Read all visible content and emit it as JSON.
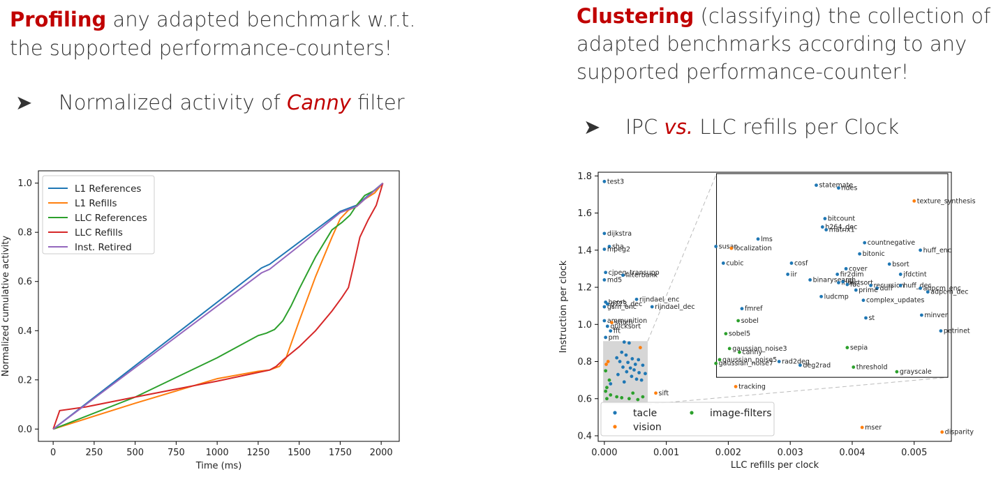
{
  "left": {
    "heading_bold": "Profiling",
    "heading_line1_rest": " any adapted benchmark w.r.t.",
    "heading_line2": "the supported performance-counters!",
    "bullet_glyph": "➤",
    "bullet_pre": "Normalized activity of ",
    "bullet_em": "Canny",
    "bullet_post": " filter"
  },
  "right": {
    "heading_bold": "Clustering",
    "heading_line1_rest": " (classifying) the collection of",
    "heading_line2": "adapted benchmarks according to any",
    "heading_line3": "supported performance-counter!",
    "bullet_glyph": "➤",
    "bullet_pre": "IPC ",
    "bullet_em": "vs.",
    "bullet_post": " LLC refills per Clock"
  },
  "chart_data": [
    {
      "type": "line",
      "title": "",
      "xlabel": "Time (ms)",
      "ylabel": "Normalized cumulative activity",
      "xlim": [
        -90,
        2110
      ],
      "ylim": [
        -0.05,
        1.05
      ],
      "xticks": [
        0,
        250,
        500,
        750,
        1000,
        1250,
        1500,
        1750,
        2000
      ],
      "yticks": [
        0.0,
        0.2,
        0.4,
        0.6,
        0.8,
        1.0
      ],
      "legend": "top-left",
      "grid": false,
      "series": [
        {
          "name": "L1 References",
          "color": "#1f77b4",
          "x": [
            0,
            1270,
            1320,
            1500,
            1750,
            1850,
            2010
          ],
          "y": [
            0.0,
            0.655,
            0.67,
            0.76,
            0.885,
            0.91,
            1.0
          ]
        },
        {
          "name": "L1 Refills",
          "color": "#ff7f0e",
          "x": [
            0,
            500,
            1000,
            1250,
            1320,
            1380,
            1420,
            1500,
            1600,
            1700,
            1750,
            1800,
            1850,
            1900,
            1960,
            2010
          ],
          "y": [
            0.0,
            0.105,
            0.205,
            0.235,
            0.24,
            0.255,
            0.29,
            0.44,
            0.62,
            0.78,
            0.855,
            0.89,
            0.905,
            0.935,
            0.96,
            1.0
          ]
        },
        {
          "name": "LLC References",
          "color": "#2ca02c",
          "x": [
            0,
            500,
            1000,
            1250,
            1300,
            1350,
            1400,
            1450,
            1500,
            1600,
            1700,
            1760,
            1810,
            1850,
            1900,
            1960,
            2010
          ],
          "y": [
            0.0,
            0.13,
            0.29,
            0.38,
            0.39,
            0.405,
            0.44,
            0.5,
            0.57,
            0.7,
            0.81,
            0.84,
            0.87,
            0.91,
            0.95,
            0.97,
            1.0
          ]
        },
        {
          "name": "LLC Refills",
          "color": "#d62728",
          "x": [
            0,
            40,
            200,
            500,
            1000,
            1250,
            1320,
            1360,
            1400,
            1500,
            1600,
            1700,
            1760,
            1800,
            1830,
            1870,
            1920,
            1970,
            2010
          ],
          "y": [
            0.0,
            0.075,
            0.09,
            0.13,
            0.195,
            0.23,
            0.24,
            0.255,
            0.28,
            0.335,
            0.4,
            0.48,
            0.535,
            0.575,
            0.66,
            0.78,
            0.85,
            0.91,
            1.0
          ]
        },
        {
          "name": "Inst. Retired",
          "color": "#9467bd",
          "x": [
            0,
            1270,
            1320,
            1500,
            1750,
            1850,
            2010
          ],
          "y": [
            0.0,
            0.635,
            0.65,
            0.745,
            0.88,
            0.905,
            1.0
          ]
        }
      ]
    },
    {
      "type": "scatter",
      "title": "",
      "xlabel": "LLC refills per clock",
      "ylabel": "Instruction per clock",
      "xlim": [
        -0.0001,
        0.0056
      ],
      "ylim": [
        0.37,
        1.82
      ],
      "xticks": [
        0.0,
        0.001,
        0.002,
        0.003,
        0.004,
        0.005
      ],
      "xtick_labels": [
        "0.000",
        "0.001",
        "0.002",
        "0.003",
        "0.004",
        "0.005"
      ],
      "yticks": [
        0.4,
        0.6,
        0.8,
        1.0,
        1.2,
        1.4,
        1.6,
        1.8
      ],
      "ytick_labels": [
        "0.4",
        "0.6",
        "0.8",
        "1.0",
        "1.2",
        "1.4",
        "1.6",
        "1.8"
      ],
      "legend": "bottom-left",
      "legend_entries": [
        {
          "name": "tacle",
          "color": "#1f77b4"
        },
        {
          "name": "vision",
          "color": "#ff7f0e"
        },
        {
          "name": "image-filters",
          "color": "#2ca02c"
        }
      ],
      "highlight_region": {
        "x": [
          -2e-05,
          0.0007
        ],
        "y": [
          0.57,
          0.91
        ]
      },
      "points": [
        {
          "label": "test3",
          "x": 0.0,
          "y": 1.77,
          "g": "tacle"
        },
        {
          "label": "dijkstra",
          "x": 0.0,
          "y": 1.49,
          "g": "tacle"
        },
        {
          "label": "sha",
          "x": 8e-05,
          "y": 1.42,
          "g": "tacle"
        },
        {
          "label": "mpeg2",
          "x": 0.0,
          "y": 1.405,
          "g": "tacle"
        },
        {
          "label": "cjpeg_transupp",
          "x": 2e-05,
          "y": 1.28,
          "g": "tacle"
        },
        {
          "label": "filterbank",
          "x": 0.0003,
          "y": 1.265,
          "g": "tacle"
        },
        {
          "label": "md5",
          "x": 0.0,
          "y": 1.24,
          "g": "tacle"
        },
        {
          "label": "rijndael_enc",
          "x": 0.00052,
          "y": 1.135,
          "g": "tacle"
        },
        {
          "label": "rijndael_dec",
          "x": 0.00077,
          "y": 1.095,
          "g": "tacle"
        },
        {
          "label": "bsort",
          "x": 2e-05,
          "y": 1.12,
          "g": "tacle"
        },
        {
          "label": "g723_dec",
          "x": 5e-05,
          "y": 1.11,
          "g": "tacle"
        },
        {
          "label": "gsm_enc",
          "x": 0.0,
          "y": 1.095,
          "g": "tacle"
        },
        {
          "label": "ammunition",
          "x": 0.0,
          "y": 1.02,
          "g": "tacle"
        },
        {
          "label": "stitch",
          "x": 0.00012,
          "y": 1.01,
          "g": "vision"
        },
        {
          "label": "quicksort",
          "x": 5e-05,
          "y": 0.99,
          "g": "tacle"
        },
        {
          "label": "fft",
          "x": 0.0001,
          "y": 0.965,
          "g": "tacle"
        },
        {
          "label": "pm",
          "x": 2e-05,
          "y": 0.93,
          "g": "tacle"
        },
        {
          "label": "sift",
          "x": 0.00083,
          "y": 0.63,
          "g": "vision"
        },
        {
          "label": "statemate",
          "x": 0.00342,
          "y": 1.75,
          "g": "tacle"
        },
        {
          "label": "ndes",
          "x": 0.00378,
          "y": 1.735,
          "g": "tacle"
        },
        {
          "label": "texture_synthesis",
          "x": 0.005,
          "y": 1.665,
          "g": "vision"
        },
        {
          "label": "bitcount",
          "x": 0.00356,
          "y": 1.57,
          "g": "tacle"
        },
        {
          "label": "h264_dec",
          "x": 0.00352,
          "y": 1.525,
          "g": "tacle"
        },
        {
          "label": "matrix1",
          "x": 0.00358,
          "y": 1.51,
          "g": "tacle"
        },
        {
          "label": "lms",
          "x": 0.00248,
          "y": 1.46,
          "g": "tacle"
        },
        {
          "label": "countnegative",
          "x": 0.0042,
          "y": 1.44,
          "g": "tacle"
        },
        {
          "label": "susan",
          "x": 0.0018,
          "y": 1.42,
          "g": "tacle"
        },
        {
          "label": "localization",
          "x": 0.00205,
          "y": 1.41,
          "g": "vision"
        },
        {
          "label": "huff_enc",
          "x": 0.0051,
          "y": 1.4,
          "g": "tacle"
        },
        {
          "label": "bitonic",
          "x": 0.00412,
          "y": 1.38,
          "g": "tacle"
        },
        {
          "label": "cubic",
          "x": 0.00192,
          "y": 1.33,
          "g": "tacle"
        },
        {
          "label": "cosf",
          "x": 0.00302,
          "y": 1.33,
          "g": "tacle"
        },
        {
          "label": "bsort",
          "x": 0.0046,
          "y": 1.325,
          "g": "tacle"
        },
        {
          "label": "cover",
          "x": 0.0039,
          "y": 1.3,
          "g": "tacle"
        },
        {
          "label": "fir2dim",
          "x": 0.00376,
          "y": 1.27,
          "g": "tacle"
        },
        {
          "label": "iir",
          "x": 0.00296,
          "y": 1.27,
          "g": "tacle"
        },
        {
          "label": "jfdctint",
          "x": 0.00478,
          "y": 1.27,
          "g": "tacle"
        },
        {
          "label": "binarysearch",
          "x": 0.00332,
          "y": 1.24,
          "g": "tacle"
        },
        {
          "label": "insertsort",
          "x": 0.00378,
          "y": 1.225,
          "g": "tacle"
        },
        {
          "label": "lift",
          "x": 0.00385,
          "y": 1.23,
          "g": "tacle"
        },
        {
          "label": "fac",
          "x": 0.00392,
          "y": 1.215,
          "g": "tacle"
        },
        {
          "label": "recursion",
          "x": 0.0043,
          "y": 1.21,
          "g": "tacle"
        },
        {
          "label": "huff_dec",
          "x": 0.00478,
          "y": 1.21,
          "g": "tacle"
        },
        {
          "label": "duff",
          "x": 0.0044,
          "y": 1.195,
          "g": "tacle"
        },
        {
          "label": "adpcm_enc",
          "x": 0.0051,
          "y": 1.195,
          "g": "tacle"
        },
        {
          "label": "prime",
          "x": 0.00406,
          "y": 1.185,
          "g": "tacle"
        },
        {
          "label": "adpcm_dec",
          "x": 0.00522,
          "y": 1.175,
          "g": "tacle"
        },
        {
          "label": "ludcmp",
          "x": 0.0035,
          "y": 1.15,
          "g": "tacle"
        },
        {
          "label": "complex_updates",
          "x": 0.00418,
          "y": 1.13,
          "g": "tacle"
        },
        {
          "label": "fmref",
          "x": 0.00222,
          "y": 1.085,
          "g": "tacle"
        },
        {
          "label": "minver",
          "x": 0.00512,
          "y": 1.05,
          "g": "tacle"
        },
        {
          "label": "st",
          "x": 0.00422,
          "y": 1.035,
          "g": "tacle"
        },
        {
          "label": "sobel",
          "x": 0.00216,
          "y": 1.02,
          "g": "image-filters"
        },
        {
          "label": "petrinet",
          "x": 0.00543,
          "y": 0.965,
          "g": "tacle"
        },
        {
          "label": "sobel5",
          "x": 0.00196,
          "y": 0.95,
          "g": "image-filters"
        },
        {
          "label": "gaussian_noise3",
          "x": 0.00202,
          "y": 0.87,
          "g": "image-filters"
        },
        {
          "label": "sepia",
          "x": 0.00392,
          "y": 0.875,
          "g": "image-filters"
        },
        {
          "label": "canny",
          "x": 0.00218,
          "y": 0.85,
          "g": "image-filters"
        },
        {
          "label": "gaussian_noise5",
          "x": 0.00186,
          "y": 0.81,
          "g": "image-filters"
        },
        {
          "label": "rad2deg",
          "x": 0.00282,
          "y": 0.8,
          "g": "tacle"
        },
        {
          "label": "gaussian_noise7",
          "x": 0.0018,
          "y": 0.79,
          "g": "image-filters"
        },
        {
          "label": "deg2rad",
          "x": 0.00316,
          "y": 0.78,
          "g": "tacle"
        },
        {
          "label": "threshold",
          "x": 0.00402,
          "y": 0.77,
          "g": "image-filters"
        },
        {
          "label": "grayscale",
          "x": 0.00472,
          "y": 0.745,
          "g": "image-filters"
        },
        {
          "label": "tracking",
          "x": 0.00212,
          "y": 0.665,
          "g": "vision"
        },
        {
          "label": "mser",
          "x": 0.00416,
          "y": 0.445,
          "g": "vision"
        },
        {
          "label": "disparity",
          "x": 0.00545,
          "y": 0.42,
          "g": "vision"
        }
      ],
      "unlabeled_points": [
        {
          "x": 0.00032,
          "y": 0.905,
          "g": "tacle"
        },
        {
          "x": 0.0004,
          "y": 0.9,
          "g": "tacle"
        },
        {
          "x": 0.00058,
          "y": 0.875,
          "g": "vision"
        },
        {
          "x": 0.00028,
          "y": 0.85,
          "g": "tacle"
        },
        {
          "x": 0.00035,
          "y": 0.835,
          "g": "tacle"
        },
        {
          "x": 0.0002,
          "y": 0.82,
          "g": "tacle"
        },
        {
          "x": 0.00045,
          "y": 0.815,
          "g": "tacle"
        },
        {
          "x": 0.00055,
          "y": 0.81,
          "g": "tacle"
        },
        {
          "x": 0.00025,
          "y": 0.8,
          "g": "tacle"
        },
        {
          "x": 0.00038,
          "y": 0.795,
          "g": "tacle"
        },
        {
          "x": 0.0005,
          "y": 0.785,
          "g": "tacle"
        },
        {
          "x": 0.00062,
          "y": 0.78,
          "g": "tacle"
        },
        {
          "x": 0.0003,
          "y": 0.77,
          "g": "tacle"
        },
        {
          "x": 0.00042,
          "y": 0.765,
          "g": "tacle"
        },
        {
          "x": 0.00048,
          "y": 0.755,
          "g": "tacle"
        },
        {
          "x": 0.00036,
          "y": 0.745,
          "g": "tacle"
        },
        {
          "x": 0.00056,
          "y": 0.74,
          "g": "tacle"
        },
        {
          "x": 0.00066,
          "y": 0.735,
          "g": "tacle"
        },
        {
          "x": 0.00022,
          "y": 0.73,
          "g": "tacle"
        },
        {
          "x": 0.00044,
          "y": 0.72,
          "g": "tacle"
        },
        {
          "x": 0.00052,
          "y": 0.705,
          "g": "tacle"
        },
        {
          "x": 0.0006,
          "y": 0.7,
          "g": "tacle"
        },
        {
          "x": 0.00032,
          "y": 0.69,
          "g": "tacle"
        },
        {
          "x": 0.0001,
          "y": 0.68,
          "g": "tacle"
        },
        {
          "x": 6e-05,
          "y": 0.8,
          "g": "vision"
        },
        {
          "x": 3e-05,
          "y": 0.785,
          "g": "vision"
        },
        {
          "x": 2e-05,
          "y": 0.75,
          "g": "image-filters"
        },
        {
          "x": 8e-05,
          "y": 0.7,
          "g": "image-filters"
        },
        {
          "x": 4e-05,
          "y": 0.66,
          "g": "image-filters"
        },
        {
          "x": 2e-05,
          "y": 0.64,
          "g": "image-filters"
        },
        {
          "x": 0.0001,
          "y": 0.62,
          "g": "image-filters"
        },
        {
          "x": 0.0002,
          "y": 0.61,
          "g": "image-filters"
        },
        {
          "x": 0.00028,
          "y": 0.605,
          "g": "image-filters"
        },
        {
          "x": 0.0004,
          "y": 0.6,
          "g": "image-filters"
        },
        {
          "x": 0.00054,
          "y": 0.595,
          "g": "image-filters"
        },
        {
          "x": 0.00046,
          "y": 0.63,
          "g": "image-filters"
        },
        {
          "x": 0.00062,
          "y": 0.61,
          "g": "image-filters"
        },
        {
          "x": 4e-05,
          "y": 0.6,
          "g": "image-filters"
        }
      ]
    }
  ]
}
